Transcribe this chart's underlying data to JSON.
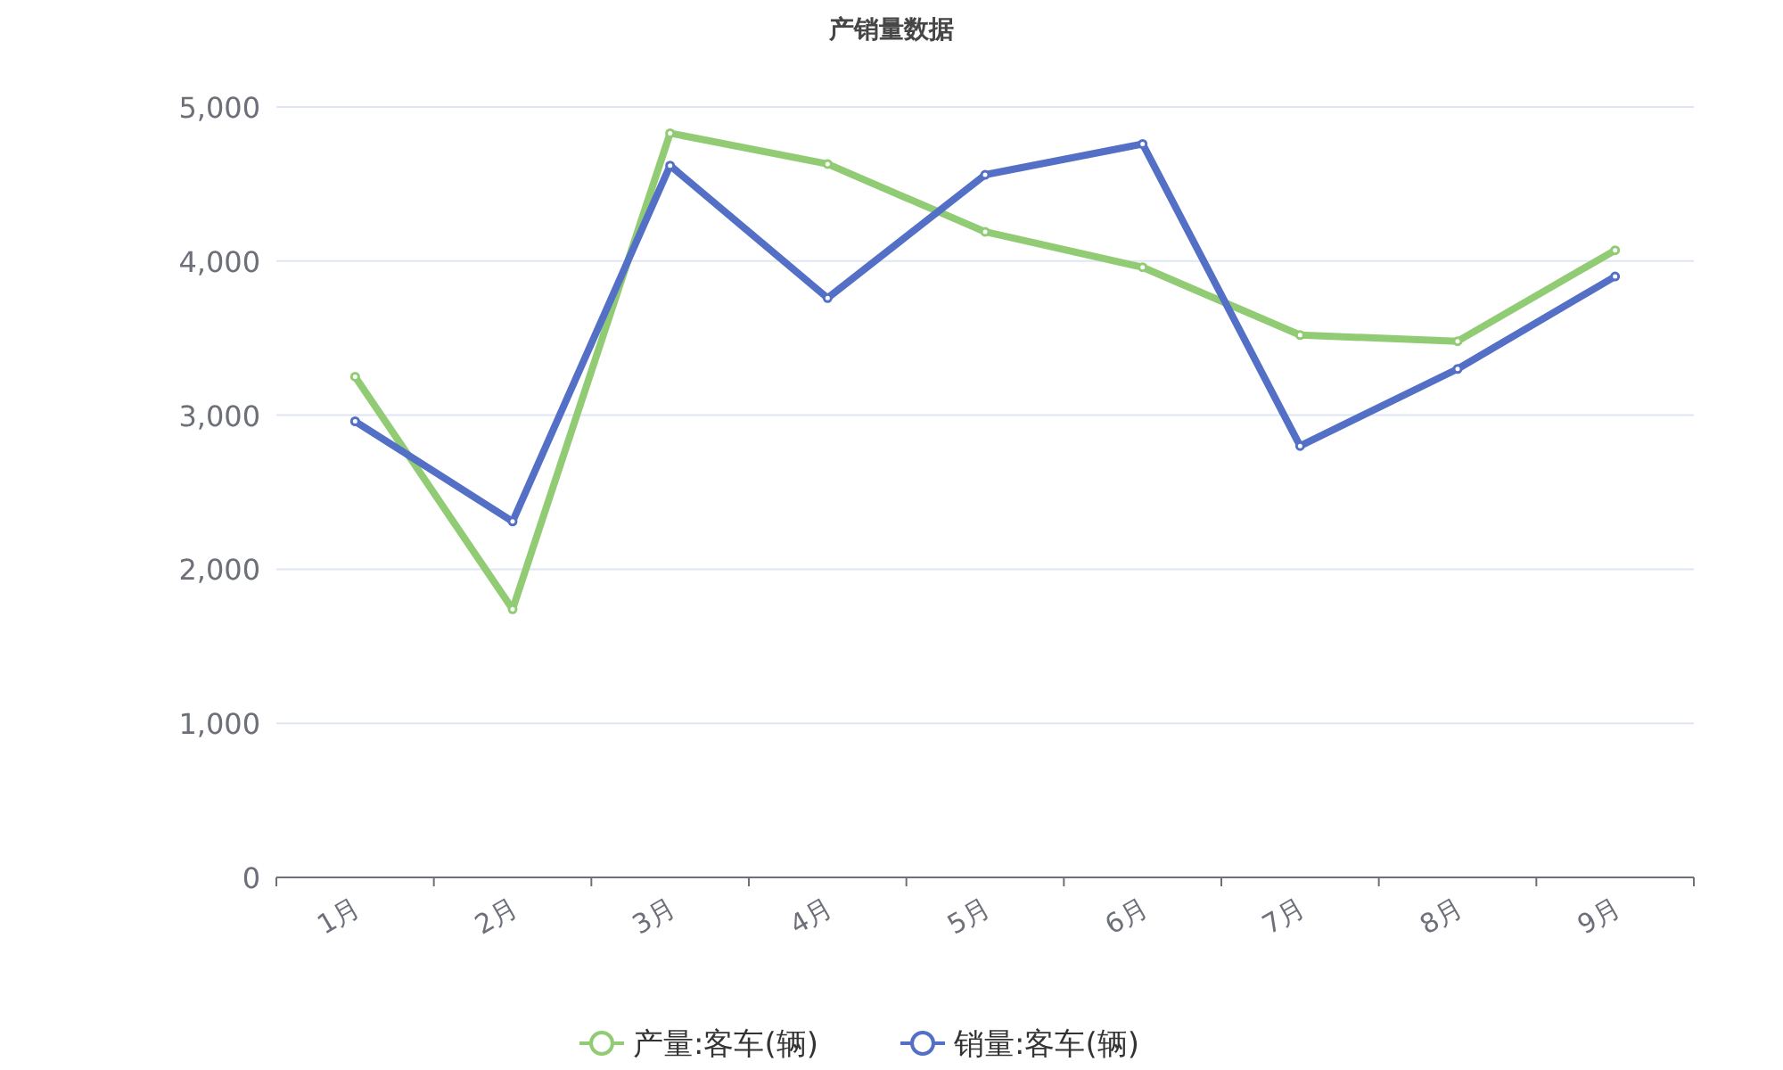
{
  "chart_data": {
    "type": "line",
    "title": "产销量数据",
    "categories": [
      "1月",
      "2月",
      "3月",
      "4月",
      "5月",
      "6月",
      "7月",
      "8月",
      "9月"
    ],
    "series": [
      {
        "name": "产量:客车(辆)",
        "color": "#91cc75",
        "values": [
          3250,
          1740,
          4830,
          4630,
          4190,
          3960,
          3520,
          3480,
          4070
        ]
      },
      {
        "name": "销量:客车(辆)",
        "color": "#5470c6",
        "values": [
          2960,
          2310,
          4620,
          3760,
          4560,
          4760,
          2800,
          3300,
          3900
        ]
      }
    ],
    "ylim": [
      0,
      5000
    ],
    "yticks": [
      0,
      {
        "value": 1000,
        "label": "1,000"
      },
      {
        "value": 2000,
        "label": "2,000"
      },
      {
        "value": 3000,
        "label": "3,000"
      },
      {
        "value": 4000,
        "label": "4,000"
      },
      {
        "value": 5000,
        "label": "5,000"
      }
    ],
    "grid": "y",
    "legend": "bottom",
    "marker": "circle",
    "line_style": "solid"
  }
}
